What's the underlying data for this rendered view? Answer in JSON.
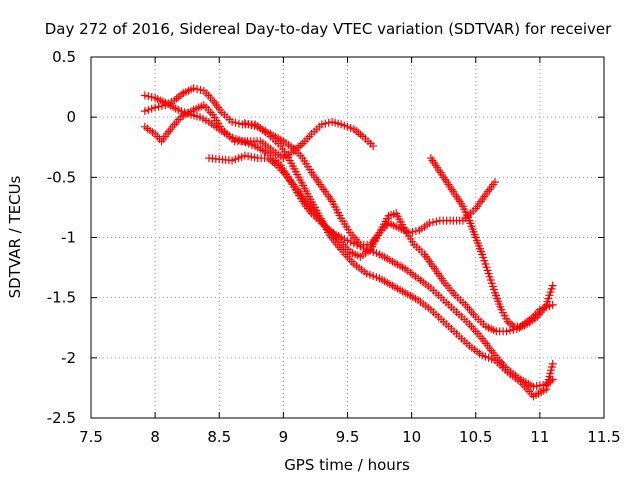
{
  "chart_data": {
    "type": "scatter",
    "title": "Day 272 of 2016, Sidereal Day-to-day VTEC variation (SDTVAR) for receiver",
    "xlabel": "GPS time / hours",
    "ylabel": "SDTVAR / TECUs",
    "xlim": [
      7.5,
      11.5
    ],
    "ylim": [
      -2.5,
      0.5
    ],
    "x_ticks": [
      7.5,
      8,
      8.5,
      9,
      9.5,
      10,
      10.5,
      11,
      11.5
    ],
    "x_tick_labels": [
      "7.5",
      "8",
      "8.5",
      "9",
      "9.5",
      "10",
      "10.5",
      "11",
      "11.5"
    ],
    "y_ticks": [
      0.5,
      0,
      -0.5,
      -1,
      -1.5,
      -2,
      -2.5
    ],
    "y_tick_labels": [
      "0.5",
      "0",
      "-0.5",
      "-1",
      "-1.5",
      "-2",
      "-2.5"
    ],
    "grid": true,
    "legend": "none",
    "marker": "+",
    "color": "#ff0000",
    "series": [
      {
        "x": [
          7.92,
          8.0,
          8.08,
          8.18,
          8.28,
          8.35,
          8.42,
          8.5,
          8.58,
          8.68,
          8.78,
          8.88,
          8.98,
          9.05,
          9.12,
          9.2,
          9.28,
          9.35,
          9.45,
          9.55,
          9.65,
          9.75,
          9.85,
          9.95,
          10.05,
          10.15,
          10.25,
          10.35,
          10.45,
          10.55,
          10.65,
          10.75,
          10.85,
          10.95,
          11.05,
          11.1
        ],
        "y": [
          0.18,
          0.16,
          0.12,
          0.06,
          0.02,
          0.0,
          -0.04,
          -0.1,
          -0.16,
          -0.2,
          -0.24,
          -0.3,
          -0.4,
          -0.52,
          -0.62,
          -0.74,
          -0.84,
          -0.94,
          -1.0,
          -1.05,
          -1.1,
          -1.14,
          -1.2,
          -1.26,
          -1.34,
          -1.42,
          -1.52,
          -1.62,
          -1.72,
          -1.84,
          -1.98,
          -2.1,
          -2.18,
          -2.24,
          -2.22,
          -2.18
        ]
      },
      {
        "x": [
          7.92,
          8.0,
          8.08,
          8.15,
          8.22,
          8.3,
          8.38,
          8.45,
          8.52,
          8.6,
          8.68,
          8.78,
          8.88,
          8.98,
          9.05,
          9.12,
          9.2,
          9.28,
          9.36,
          9.45,
          9.55,
          9.65,
          9.75,
          9.85,
          9.95,
          10.05,
          10.15,
          10.25,
          10.35,
          10.45,
          10.55,
          10.65,
          10.75,
          10.85,
          10.95,
          11.05,
          11.1
        ],
        "y": [
          0.05,
          0.08,
          0.1,
          0.14,
          0.2,
          0.24,
          0.22,
          0.14,
          0.04,
          -0.04,
          -0.06,
          -0.06,
          -0.14,
          -0.24,
          -0.36,
          -0.5,
          -0.66,
          -0.82,
          -0.98,
          -1.1,
          -1.22,
          -1.3,
          -1.34,
          -1.4,
          -1.46,
          -1.52,
          -1.6,
          -1.7,
          -1.8,
          -1.9,
          -1.98,
          -2.02,
          -2.12,
          -2.2,
          -2.32,
          -2.26,
          -2.05
        ]
      },
      {
        "x": [
          7.92,
          8.0,
          8.05,
          8.12,
          8.2,
          8.3,
          8.38,
          8.45,
          8.52,
          8.62,
          8.72,
          8.82,
          8.92,
          9.0,
          9.08,
          9.15,
          9.22,
          9.3,
          9.38,
          9.45,
          9.55,
          9.62,
          9.7
        ],
        "y": [
          -0.08,
          -0.14,
          -0.2,
          -0.1,
          0.0,
          0.06,
          0.1,
          0.02,
          -0.1,
          -0.2,
          -0.2,
          -0.2,
          -0.28,
          -0.34,
          -0.28,
          -0.22,
          -0.14,
          -0.06,
          -0.04,
          -0.06,
          -0.1,
          -0.16,
          -0.24
        ]
      },
      {
        "x": [
          8.42,
          8.5,
          8.6,
          8.7,
          8.8,
          8.88,
          8.95,
          9.02,
          9.08,
          9.15,
          9.22,
          9.3,
          9.38,
          9.45,
          9.52,
          9.6,
          9.68,
          9.75,
          9.82,
          9.9,
          9.98,
          10.06,
          10.14,
          10.22,
          10.3,
          10.4,
          10.5,
          10.58,
          10.65
        ],
        "y": [
          -0.34,
          -0.35,
          -0.36,
          -0.32,
          -0.34,
          -0.34,
          -0.4,
          -0.48,
          -0.58,
          -0.7,
          -0.8,
          -0.88,
          -0.96,
          -1.04,
          -1.12,
          -1.16,
          -1.1,
          -0.96,
          -0.88,
          -0.92,
          -0.96,
          -0.94,
          -0.88,
          -0.86,
          -0.86,
          -0.86,
          -0.76,
          -0.64,
          -0.54
        ]
      },
      {
        "x": [
          8.7,
          8.8,
          8.9,
          9.0,
          9.08,
          9.15,
          9.22,
          9.3,
          9.38,
          9.45,
          9.52,
          9.6,
          9.68,
          9.75,
          9.82,
          9.88,
          9.95,
          10.02,
          10.1,
          10.18,
          10.26,
          10.34,
          10.42,
          10.5,
          10.58,
          10.66,
          10.74,
          10.82,
          10.9,
          10.98,
          11.05,
          11.1
        ],
        "y": [
          -0.05,
          -0.08,
          -0.14,
          -0.2,
          -0.26,
          -0.34,
          -0.46,
          -0.58,
          -0.7,
          -0.84,
          -0.96,
          -1.06,
          -1.06,
          -0.96,
          -0.82,
          -0.8,
          -0.94,
          -1.06,
          -1.14,
          -1.26,
          -1.38,
          -1.48,
          -1.56,
          -1.66,
          -1.74,
          -1.78,
          -1.78,
          -1.76,
          -1.72,
          -1.66,
          -1.56,
          -1.4
        ]
      },
      {
        "x": [
          10.15,
          10.2,
          10.25,
          10.3,
          10.35,
          10.4,
          10.45,
          10.5,
          10.55,
          10.6,
          10.65,
          10.7,
          10.75,
          10.8,
          10.85,
          10.9,
          10.95,
          11.0,
          11.05,
          11.1
        ],
        "y": [
          -0.34,
          -0.42,
          -0.5,
          -0.58,
          -0.66,
          -0.74,
          -0.86,
          -1.0,
          -1.14,
          -1.3,
          -1.46,
          -1.6,
          -1.7,
          -1.74,
          -1.74,
          -1.7,
          -1.66,
          -1.6,
          -1.58,
          -1.56
        ]
      }
    ]
  }
}
